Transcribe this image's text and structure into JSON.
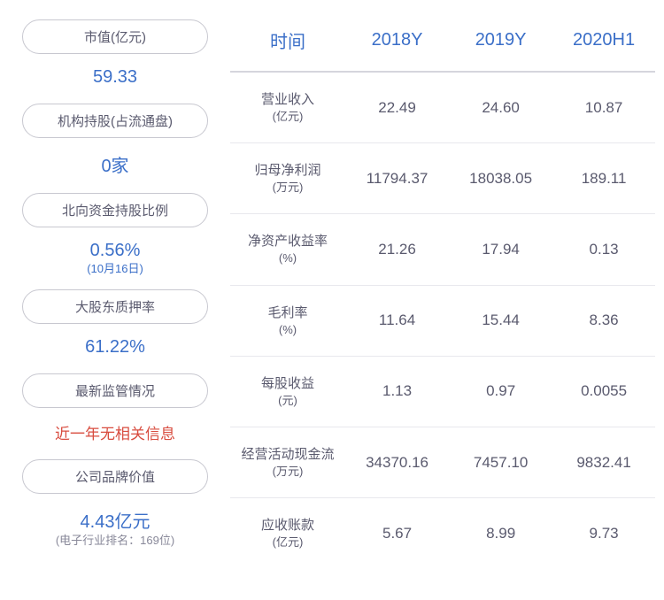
{
  "left": {
    "items": [
      {
        "label": "市值(亿元)",
        "value": "59.33",
        "value_color": "#3b6fc8",
        "note": ""
      },
      {
        "label": "机构持股(占流通盘)",
        "value": "0家",
        "value_color": "#3b6fc8",
        "note": ""
      },
      {
        "label": "北向资金持股比例",
        "value": "0.56%",
        "value_color": "#3b6fc8",
        "note": "(10月16日)",
        "note_color": "#3b6fc8"
      },
      {
        "label": "大股东质押率",
        "value": "61.22%",
        "value_color": "#3b6fc8",
        "note": ""
      },
      {
        "label": "最新监管情况",
        "value": "近一年无相关信息",
        "value_color": "#d84c3f",
        "note": "",
        "value_size": "17px"
      },
      {
        "label": "公司品牌价值",
        "value": "4.43亿元",
        "value_color": "#3b6fc8",
        "note": "(电子行业排名：169位)",
        "note_color": "#888899"
      }
    ]
  },
  "table": {
    "header_color": "#3b6fc8",
    "border_color": "#e8e8ed",
    "columns": [
      "时间",
      "2018Y",
      "2019Y",
      "2020H1"
    ],
    "rows": [
      {
        "label": "营业收入",
        "unit": "(亿元)",
        "cells": [
          "22.49",
          "24.60",
          "10.87"
        ]
      },
      {
        "label": "归母净利润",
        "unit": "(万元)",
        "cells": [
          "11794.37",
          "18038.05",
          "189.11"
        ]
      },
      {
        "label": "净资产收益率",
        "unit": "(%)",
        "cells": [
          "21.26",
          "17.94",
          "0.13"
        ]
      },
      {
        "label": "毛利率",
        "unit": "(%)",
        "cells": [
          "11.64",
          "15.44",
          "8.36"
        ]
      },
      {
        "label": "每股收益",
        "unit": "(元)",
        "cells": [
          "1.13",
          "0.97",
          "0.0055"
        ]
      },
      {
        "label": "经营活动现金流",
        "unit": "(万元)",
        "cells": [
          "34370.16",
          "7457.10",
          "9832.41"
        ]
      },
      {
        "label": "应收账款",
        "unit": "(亿元)",
        "cells": [
          "5.67",
          "8.99",
          "9.73"
        ]
      }
    ]
  }
}
